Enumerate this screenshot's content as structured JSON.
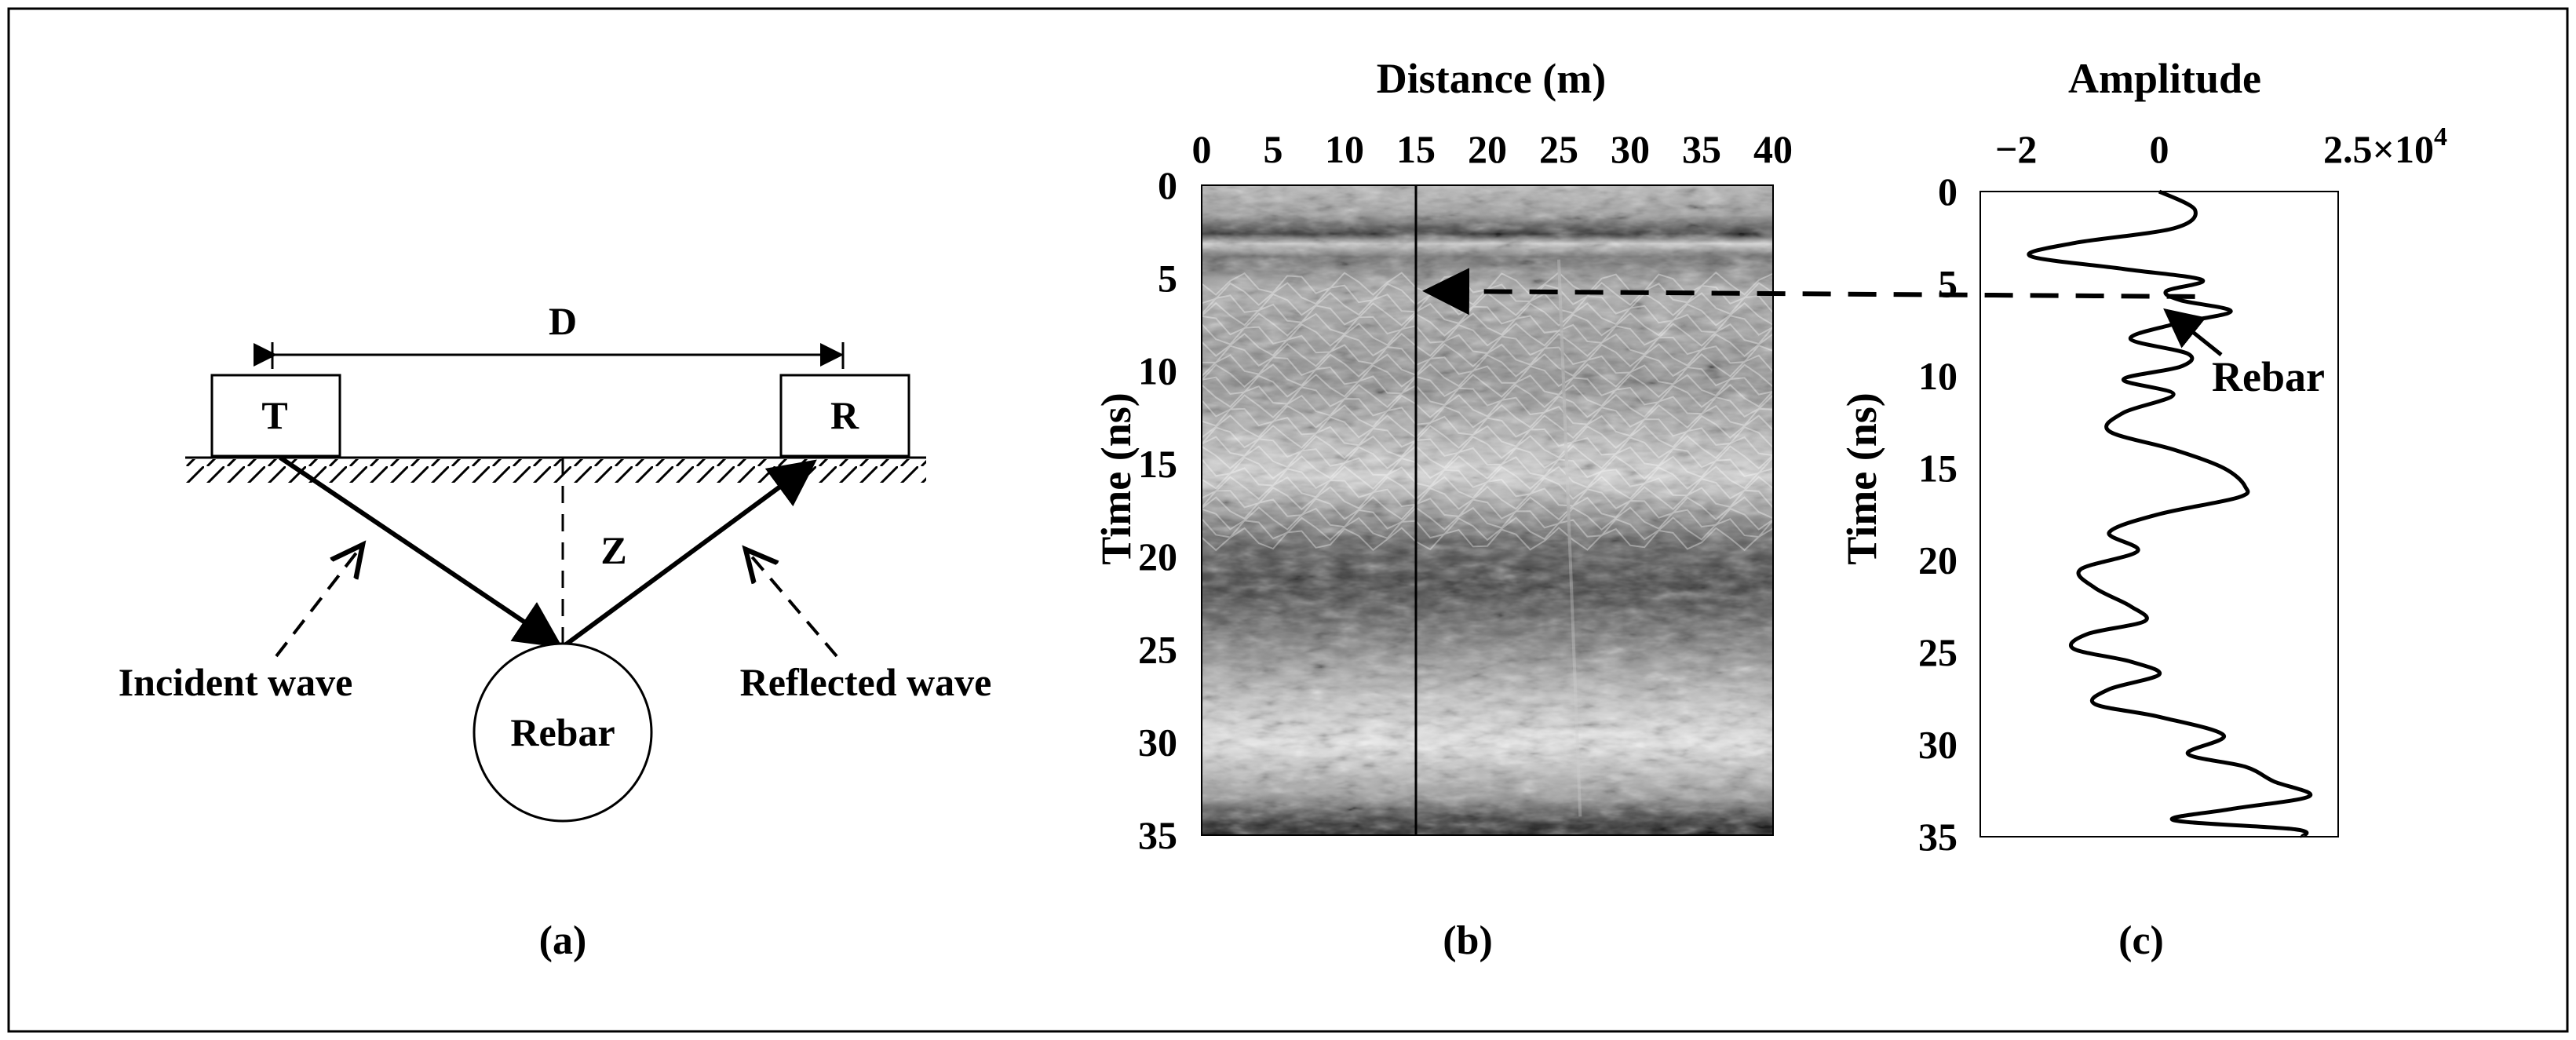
{
  "panel_a": {
    "caption": "(a)",
    "distance_label": "D",
    "transmitter_label": "T",
    "receiver_label": "R",
    "depth_label": "Z",
    "target_label": "Rebar",
    "incident_label": "Incident wave",
    "reflected_label": "Reflected wave"
  },
  "panel_b": {
    "caption": "(b)",
    "x_axis_title": "Distance (m)",
    "y_axis_title": "Time (ns)",
    "x_ticks": [
      "0",
      "5",
      "10",
      "15",
      "20",
      "25",
      "30",
      "35",
      "40"
    ],
    "y_ticks": [
      "0",
      "5",
      "10",
      "15",
      "20",
      "25",
      "30",
      "35"
    ],
    "trace_position_m": 15
  },
  "panel_c": {
    "caption": "(c)",
    "x_axis_title": "Amplitude",
    "y_axis_title": "Time (ns)",
    "x_ticks": [
      "−2",
      "0"
    ],
    "x_tick_max": "2.5×10",
    "x_tick_max_exp": "4",
    "y_ticks": [
      "0",
      "5",
      "10",
      "15",
      "20",
      "25",
      "30",
      "35"
    ],
    "annotation": "Rebar",
    "rebar_time_ns": 5.7
  },
  "chart_data": [
    {
      "type": "heatmap",
      "title": "",
      "xlabel": "Distance (m)",
      "ylabel": "Time (ns)",
      "xlim": [
        0,
        40
      ],
      "ylim": [
        35,
        0
      ],
      "colormap": "grayscale",
      "marker_line_distance_m": 15,
      "annotation_time_ns": 5.7
    },
    {
      "type": "line",
      "title": "",
      "xlabel": "Amplitude",
      "ylabel": "Time (ns)",
      "xlim": [
        -2.5,
        2.5
      ],
      "x_scale_factor": "10^4",
      "ylim": [
        35,
        0
      ],
      "series": [
        {
          "t_ns": [
            0,
            1,
            2,
            2.8,
            3.5,
            4.2,
            4.8,
            5.4,
            5.9,
            6.5,
            7.2,
            8,
            8.8,
            9.5,
            10.2,
            11,
            12,
            13,
            14,
            15,
            16,
            16.6,
            17.5,
            18.5,
            19.5,
            20.5,
            21.5,
            22.5,
            23.3,
            24,
            24.8,
            25.5,
            26.2,
            27,
            27.8,
            28.5,
            29.5,
            30.5,
            31.2,
            32,
            32.8,
            33.5,
            34.1,
            34.6,
            35
          ],
          "amplitude_x1e4": [
            0,
            0.5,
            0.2,
            -1.2,
            -1.8,
            -0.5,
            0.6,
            0.1,
            0.3,
            1.0,
            0.2,
            -0.4,
            0.4,
            0.3,
            -0.5,
            0.2,
            -0.5,
            -0.7,
            0.2,
            0.9,
            1.2,
            1.1,
            0.0,
            -0.7,
            -0.3,
            -1.1,
            -0.9,
            -0.4,
            -0.2,
            -1.0,
            -1.2,
            -0.4,
            0.0,
            -0.7,
            -0.9,
            0.0,
            0.9,
            0.4,
            1.2,
            1.6,
            2.1,
            1.0,
            0.2,
            1.9,
            2.0
          ]
        }
      ]
    }
  ]
}
